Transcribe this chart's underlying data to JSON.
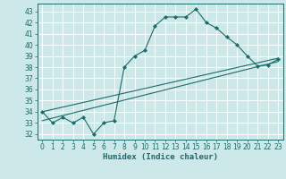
{
  "xlabel": "Humidex (Indice chaleur)",
  "xlim": [
    -0.5,
    23.5
  ],
  "ylim": [
    31.5,
    43.7
  ],
  "yticks": [
    32,
    33,
    34,
    35,
    36,
    37,
    38,
    39,
    40,
    41,
    42,
    43
  ],
  "xticks": [
    0,
    1,
    2,
    3,
    4,
    5,
    6,
    7,
    8,
    9,
    10,
    11,
    12,
    13,
    14,
    15,
    16,
    17,
    18,
    19,
    20,
    21,
    22,
    23
  ],
  "bg_color": "#cce8e8",
  "line_color": "#1a6b6b",
  "line1_x": [
    0,
    1,
    2,
    3,
    4,
    5,
    6,
    7,
    8,
    9,
    10,
    11,
    12,
    13,
    14,
    15,
    16,
    17,
    18,
    19,
    20,
    21,
    22,
    23
  ],
  "line1_y": [
    34.0,
    33.0,
    33.5,
    33.0,
    33.5,
    32.0,
    33.0,
    33.2,
    38.0,
    39.0,
    39.5,
    41.7,
    42.5,
    42.5,
    42.5,
    43.2,
    42.0,
    41.5,
    40.7,
    40.0,
    39.0,
    38.1,
    38.2,
    38.7
  ],
  "line2_x": [
    0,
    23
  ],
  "line2_y": [
    34.0,
    38.8
  ],
  "line3_x": [
    0,
    23
  ],
  "line3_y": [
    33.2,
    38.5
  ],
  "grid_color": "#b0d4d4",
  "tick_fontsize": 5.5,
  "xlabel_fontsize": 6.5
}
